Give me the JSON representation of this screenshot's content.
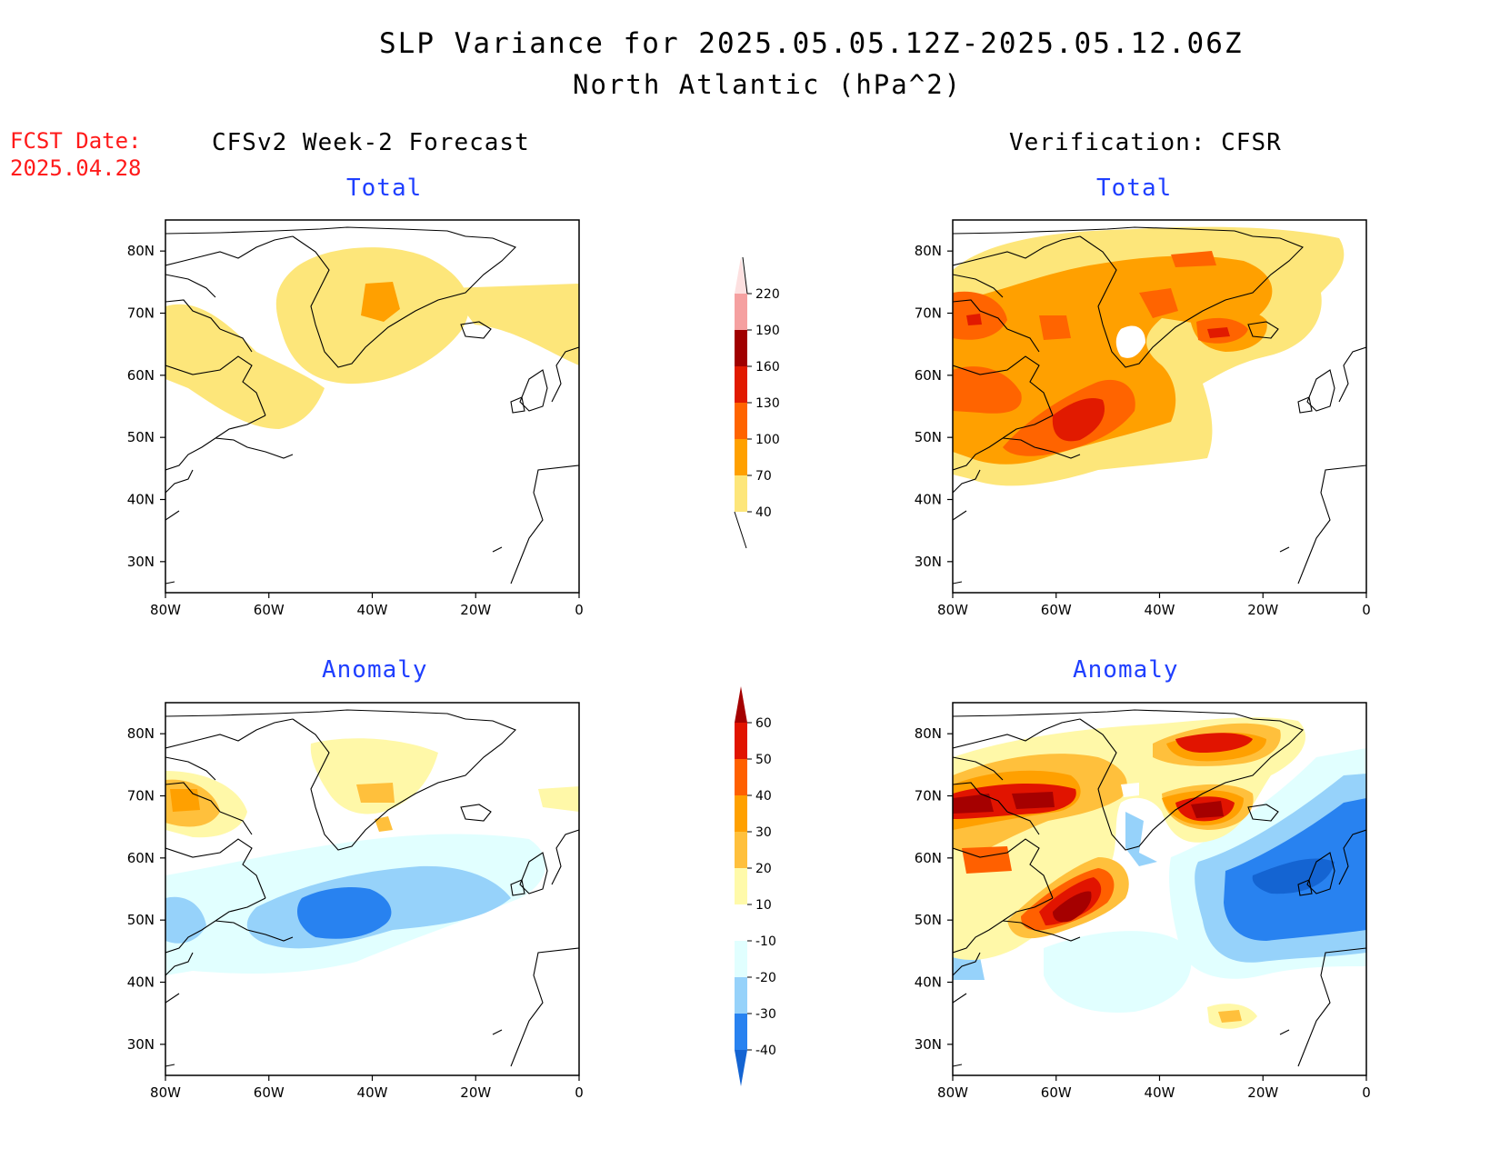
{
  "header": {
    "title": "SLP Variance for 2025.05.05.12Z-2025.05.12.06Z",
    "subtitle": "North Atlantic (hPa^2)",
    "fcst_label": "FCST Date:",
    "fcst_date": "2025.04.28"
  },
  "columns": {
    "left": "CFSv2 Week-2 Forecast",
    "right": "Verification: CFSR"
  },
  "panels": {
    "total": "Total",
    "anomaly": "Anomaly"
  },
  "map_axes": {
    "lat_labels": [
      "80N",
      "70N",
      "60N",
      "50N",
      "40N",
      "30N"
    ],
    "lon_labels": [
      "80W",
      "60W",
      "40W",
      "20W",
      "0"
    ],
    "lat_values": [
      80,
      70,
      60,
      50,
      40,
      30
    ],
    "lon_values": [
      -80,
      -60,
      -40,
      -20,
      0
    ],
    "lat_range": [
      25,
      85
    ],
    "lon_range": [
      -80,
      0
    ]
  },
  "colorbar_total": {
    "levels": [
      "40",
      "70",
      "100",
      "130",
      "160",
      "190",
      "220"
    ],
    "colors": [
      "#fde67a",
      "#ffa000",
      "#ff6400",
      "#e11a00",
      "#a00000",
      "#f5a0a0",
      "#fde0e0"
    ]
  },
  "colorbar_anomaly": {
    "levels": [
      "-40",
      "-30",
      "-20",
      "-10",
      "10",
      "20",
      "30",
      "40",
      "50",
      "60"
    ],
    "colors": [
      "#1464d2",
      "#2882f0",
      "#96d2fa",
      "#e1ffff",
      "#ffffff",
      "#fffaaa",
      "#ffc03c",
      "#ffa000",
      "#ff6000",
      "#e11400",
      "#a50000"
    ]
  },
  "palette": {
    "yellow": "#fde67a",
    "orange": "#ffa000",
    "dorange": "#ff6400",
    "red": "#e11a00",
    "dred": "#a00000",
    "lyellow": "#fff8a8",
    "lorange": "#ffc03c",
    "cyan": "#e1ffff",
    "lblue": "#96d2fa",
    "mblue": "#2882f0",
    "dblue": "#1464d2",
    "fcst_red": "#ff1a1a",
    "panel_title_blue": "#1f3fff"
  }
}
